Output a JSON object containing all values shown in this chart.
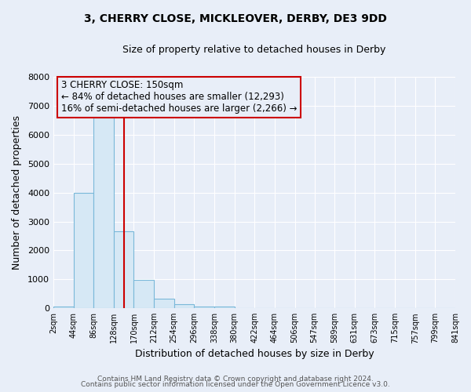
{
  "title": "3, CHERRY CLOSE, MICKLEOVER, DERBY, DE3 9DD",
  "subtitle": "Size of property relative to detached houses in Derby",
  "xlabel": "Distribution of detached houses by size in Derby",
  "ylabel": "Number of detached properties",
  "bin_edges": [
    2,
    44,
    86,
    128,
    170,
    212,
    254,
    296,
    338,
    380,
    422,
    464,
    506,
    547,
    589,
    631,
    673,
    715,
    757,
    799,
    841
  ],
  "bin_labels": [
    "2sqm",
    "44sqm",
    "86sqm",
    "128sqm",
    "170sqm",
    "212sqm",
    "254sqm",
    "296sqm",
    "338sqm",
    "380sqm",
    "422sqm",
    "464sqm",
    "506sqm",
    "547sqm",
    "589sqm",
    "631sqm",
    "673sqm",
    "715sqm",
    "757sqm",
    "799sqm",
    "841sqm"
  ],
  "bar_heights": [
    60,
    4000,
    6600,
    2650,
    970,
    330,
    150,
    60,
    60,
    0,
    0,
    0,
    0,
    0,
    0,
    0,
    0,
    0,
    0,
    0
  ],
  "bar_color": "#d6e8f5",
  "bar_edge_color": "#7ab8d9",
  "vline_x": 150,
  "vline_color": "#cc0000",
  "ylim": [
    0,
    8000
  ],
  "background_color": "#e8eef8",
  "grid_color": "white",
  "annotation_box_text_lines": [
    "3 CHERRY CLOSE: 150sqm",
    "← 84% of detached houses are smaller (12,293)",
    "16% of semi-detached houses are larger (2,266) →"
  ],
  "annotation_box_facecolor": "#e8eef8",
  "annotation_box_edgecolor": "#cc0000",
  "footer_line1": "Contains HM Land Registry data © Crown copyright and database right 2024.",
  "footer_line2": "Contains public sector information licensed under the Open Government Licence v3.0.",
  "title_fontsize": 10,
  "subtitle_fontsize": 9,
  "ylabel_fontsize": 9,
  "xlabel_fontsize": 9
}
